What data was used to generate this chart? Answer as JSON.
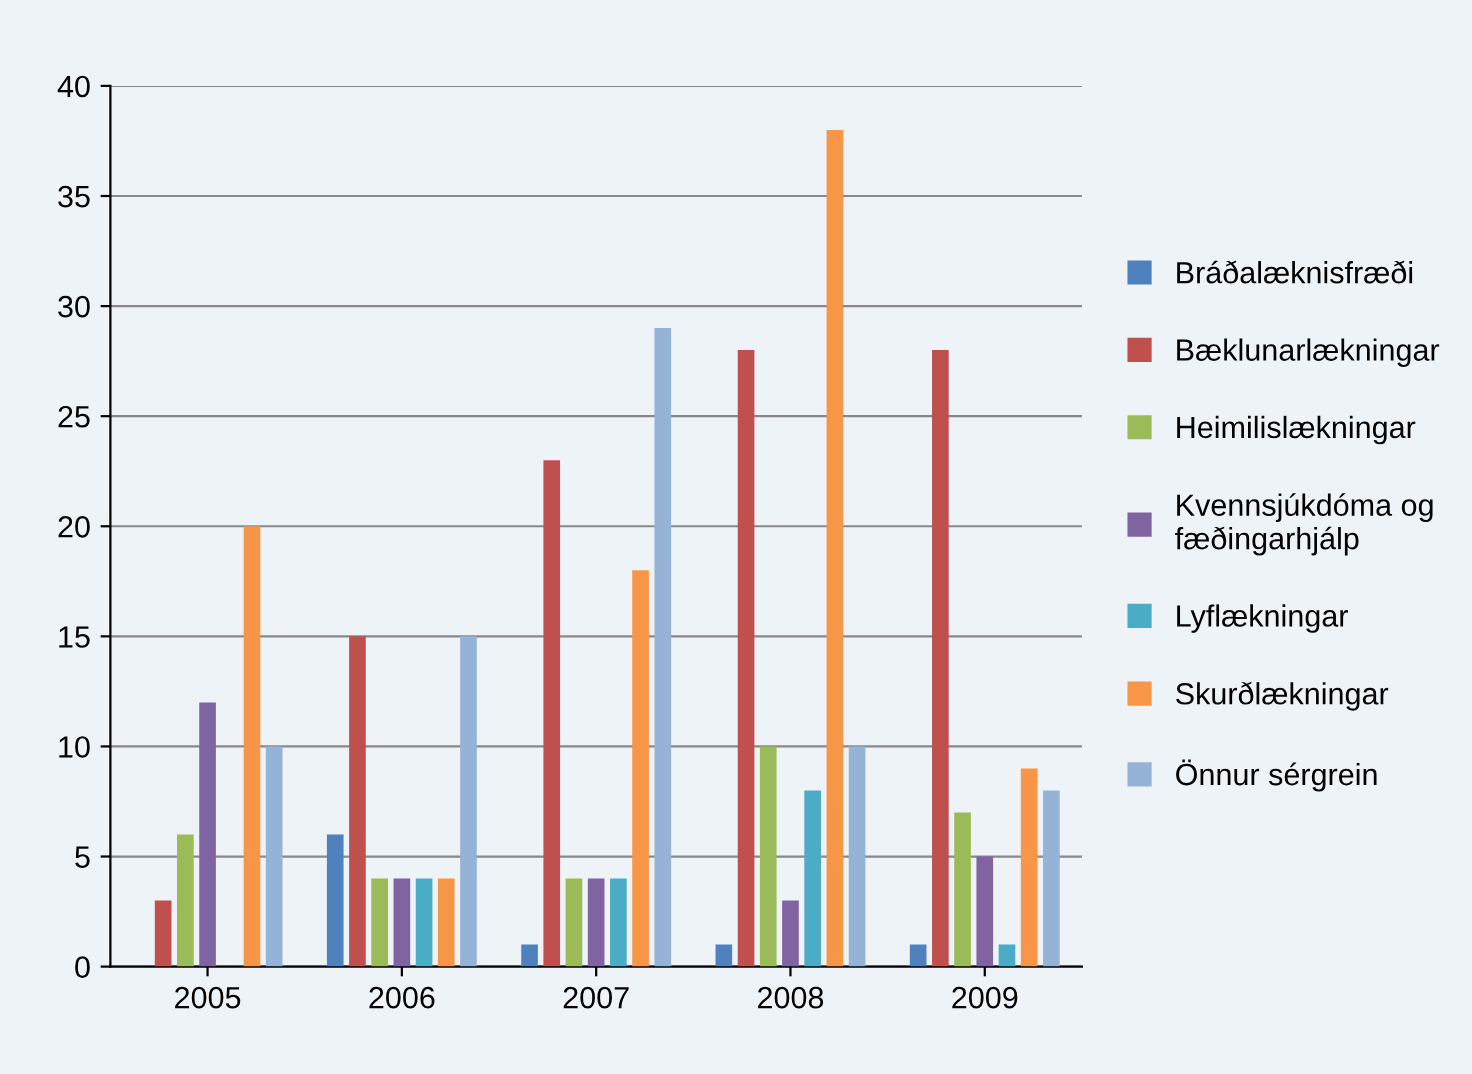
{
  "chart_data": {
    "type": "bar",
    "categories": [
      "2005",
      "2006",
      "2007",
      "2008",
      "2009"
    ],
    "series": [
      {
        "name": "Bráðalæknisfræði",
        "color": "#4f81bd",
        "values": [
          0,
          6,
          1,
          1,
          1
        ]
      },
      {
        "name": "Bæklunarlækningar",
        "color": "#c0504d",
        "values": [
          3,
          15,
          23,
          28,
          28
        ]
      },
      {
        "name": "Heimilislækningar",
        "color": "#9bbb59",
        "values": [
          6,
          4,
          4,
          10,
          7
        ]
      },
      {
        "name": "Kvennsjúkdóma og fæðingarhjálp",
        "color": "#8064a2",
        "values": [
          12,
          4,
          4,
          3,
          5
        ]
      },
      {
        "name": "Lyflækningar",
        "color": "#4bacc6",
        "values": [
          0,
          4,
          4,
          8,
          1
        ]
      },
      {
        "name": "Skurðlækningar",
        "color": "#f79646",
        "values": [
          20,
          4,
          18,
          38,
          9
        ]
      },
      {
        "name": "Önnur sérgrein",
        "color": "#95b3d7",
        "values": [
          10,
          15,
          29,
          10,
          8
        ]
      }
    ],
    "ylim": [
      0,
      40
    ],
    "yticks": [
      0,
      5,
      10,
      15,
      20,
      25,
      30,
      35,
      40
    ],
    "grid": "y",
    "legend": "right"
  }
}
